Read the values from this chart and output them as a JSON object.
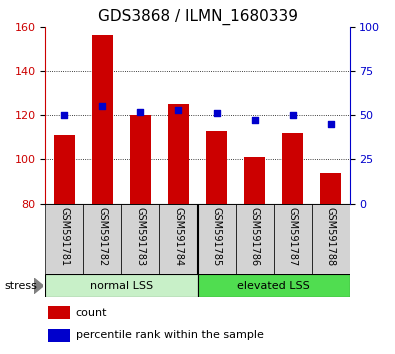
{
  "title": "GDS3868 / ILMN_1680339",
  "categories": [
    "GSM591781",
    "GSM591782",
    "GSM591783",
    "GSM591784",
    "GSM591785",
    "GSM591786",
    "GSM591787",
    "GSM591788"
  ],
  "bar_values": [
    111,
    156,
    120,
    125,
    113,
    101,
    112,
    94
  ],
  "dot_values": [
    50,
    55,
    52,
    53,
    51,
    47,
    50,
    45
  ],
  "ylim_left": [
    80,
    160
  ],
  "ylim_right": [
    0,
    100
  ],
  "yticks_left": [
    80,
    100,
    120,
    140,
    160
  ],
  "yticks_right": [
    0,
    25,
    50,
    75,
    100
  ],
  "bar_color": "#cc0000",
  "dot_color": "#0000cc",
  "bar_width": 0.55,
  "group1_label": "normal LSS",
  "group2_label": "elevated LSS",
  "group1_indices": [
    0,
    1,
    2,
    3
  ],
  "group2_indices": [
    4,
    5,
    6,
    7
  ],
  "stress_label": "stress",
  "legend_count": "count",
  "legend_pct": "percentile rank within the sample",
  "bg_plot": "#ffffff",
  "bg_xtick": "#d3d3d3",
  "group1_color": "#c8f0c8",
  "group2_color": "#50dd50",
  "title_fontsize": 11,
  "tick_fontsize": 8,
  "label_fontsize": 8
}
